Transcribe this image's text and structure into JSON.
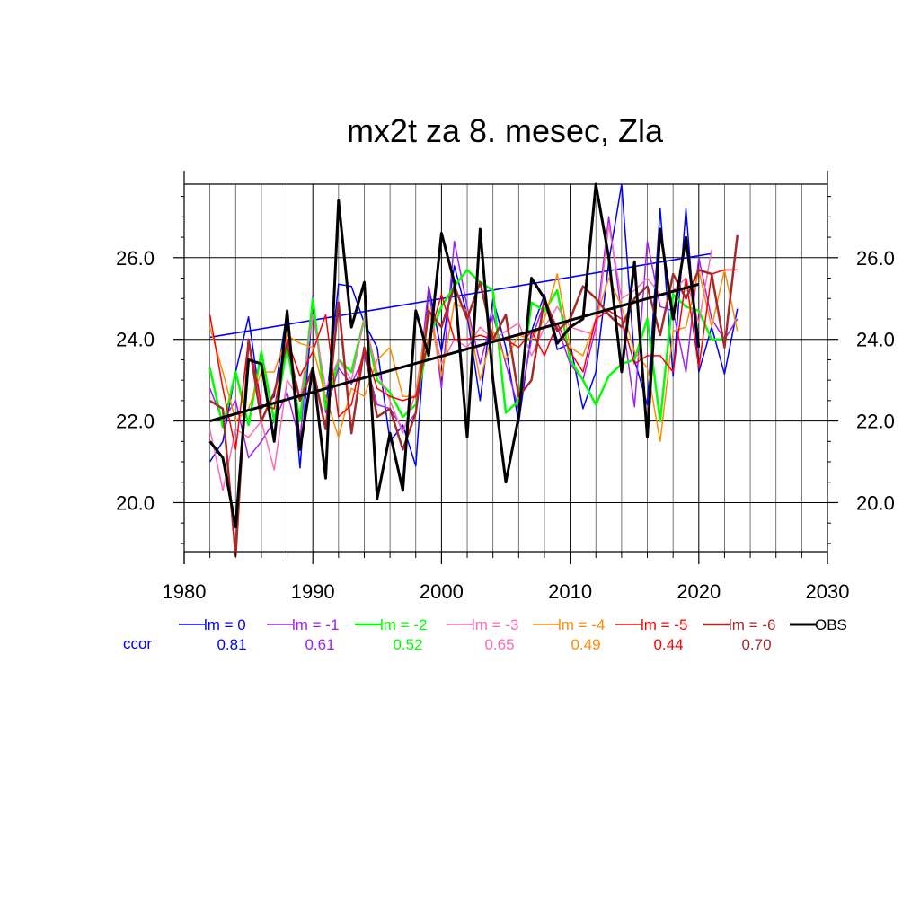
{
  "chart_data": {
    "type": "line",
    "title": "mx2t za 8. mesec, Zla",
    "xlabel": "",
    "ylabel": "",
    "xlim": [
      1980,
      2030
    ],
    "ylim": [
      18.8,
      27.8
    ],
    "x_ticks": [
      1980,
      1990,
      2000,
      2010,
      2020,
      2030
    ],
    "x_tick_labels": [
      "1980",
      "1990",
      "2000",
      "2010",
      "2020",
      "2030"
    ],
    "y_ticks": [
      20,
      22,
      24,
      26
    ],
    "y_tick_labels": [
      "20.0",
      "22.0",
      "24.0",
      "26.0"
    ],
    "grid": true,
    "legend_position": "bottom",
    "ccor_label": "ccor",
    "series": [
      {
        "name": "lm = 0",
        "color": "#0000ff",
        "ccor": "0.81",
        "width": 1.5,
        "x_start": 1982,
        "values": [
          21.0,
          21.5,
          23.2,
          24.55,
          22.3,
          22.6,
          24.7,
          20.85,
          24.9,
          22.3,
          25.35,
          25.3,
          24.4,
          23.8,
          21.5,
          21.9,
          20.9,
          25.3,
          23.7,
          25.8,
          24.6,
          22.5,
          25.0,
          23.8,
          21.95,
          24.2,
          25.1,
          23.75,
          23.9,
          22.3,
          23.2,
          25.9,
          27.8,
          23.5,
          22.4,
          27.2,
          23.1,
          27.2,
          23.2,
          24.3,
          23.15,
          24.75
        ],
        "trend": [
          [
            1982,
            24.05
          ],
          [
            2021,
            26.1
          ]
        ]
      },
      {
        "name": "lm = -1",
        "color": "#a020f0",
        "ccor": "0.61",
        "width": 1.5,
        "x_start": 1982,
        "values": [
          22.8,
          22.0,
          22.5,
          21.1,
          21.5,
          22.0,
          22.7,
          21.5,
          25.1,
          22.2,
          23.3,
          22.9,
          23.6,
          22.4,
          22.3,
          21.8,
          22.2,
          25.3,
          22.8,
          26.4,
          24.8,
          23.4,
          24.6,
          23.4,
          22.3,
          24.0,
          24.9,
          24.3,
          23.4,
          23.0,
          24.3,
          27.0,
          24.6,
          22.35,
          26.4,
          24.8,
          24.7,
          23.2,
          26.0,
          24.5,
          24.0,
          24.5
        ],
        "trend": null
      },
      {
        "name": "lm = -2",
        "color": "#00ff00",
        "ccor": "0.52",
        "width": 2.5,
        "x_start": 1982,
        "values": [
          23.3,
          21.85,
          23.2,
          21.9,
          23.7,
          22.0,
          23.8,
          22.0,
          25.0,
          22.3,
          23.5,
          23.2,
          24.5,
          23.0,
          22.7,
          22.1,
          22.4,
          24.0,
          24.8,
          25.3,
          25.7,
          25.4,
          25.2,
          22.2,
          22.5,
          24.9,
          24.7,
          25.2,
          23.5,
          23.0,
          22.4,
          23.1,
          23.4,
          23.5,
          24.5,
          22.0,
          25.1,
          24.8,
          24.7,
          24.0,
          24.0
        ],
        "trend": null
      },
      {
        "name": "lm = -3",
        "color": "#ff69b4",
        "ccor": "0.65",
        "width": 1.5,
        "x_start": 1982,
        "values": [
          21.8,
          20.3,
          21.8,
          21.6,
          22.0,
          20.8,
          23.0,
          22.5,
          24.6,
          22.8,
          23.5,
          23.0,
          24.5,
          23.2,
          22.5,
          21.7,
          22.7,
          24.8,
          23.4,
          24.0,
          23.8,
          24.3,
          24.0,
          24.2,
          24.4,
          23.6,
          24.3,
          24.8,
          24.3,
          24.2,
          24.1,
          26.8,
          25.0,
          25.2,
          25.5,
          25.1,
          25.2,
          25.5,
          24.4,
          26.2
        ],
        "trend": null
      },
      {
        "name": "lm = -4",
        "color": "#ff8c00",
        "ccor": "0.49",
        "width": 1.5,
        "x_start": 1982,
        "values": [
          24.3,
          23.2,
          22.0,
          22.3,
          23.2,
          23.2,
          24.1,
          23.9,
          23.8,
          22.6,
          21.6,
          22.8,
          22.6,
          23.5,
          23.8,
          22.6,
          22.6,
          24.8,
          23.1,
          24.9,
          24.7,
          23.0,
          24.2,
          23.5,
          24.1,
          24.0,
          24.5,
          25.6,
          23.8,
          23.6,
          24.5,
          25.5,
          24.8,
          23.7,
          23.3,
          21.5,
          24.2,
          24.3,
          25.7,
          24.3,
          25.7,
          24.2
        ],
        "trend": null
      },
      {
        "name": "lm = -5",
        "color": "#ff0000",
        "ccor": "0.44",
        "width": 1.5,
        "x_start": 1982,
        "values": [
          24.6,
          22.8,
          21.3,
          24.0,
          22.4,
          22.3,
          24.0,
          23.1,
          23.7,
          24.6,
          22.1,
          22.4,
          23.8,
          22.8,
          22.6,
          22.5,
          22.6,
          24.0,
          25.1,
          24.0,
          24.0,
          24.1,
          24.0,
          24.0,
          23.8,
          24.2,
          23.6,
          24.4,
          23.7,
          23.2,
          24.5,
          24.7,
          24.5,
          23.4,
          23.6,
          23.6,
          23.2,
          25.5,
          23.3,
          25.6,
          25.7,
          25.7
        ],
        "trend": null
      },
      {
        "name": "lm = -6",
        "color": "#a52a2a",
        "ccor": "0.70",
        "width": 2.5,
        "x_start": 1982,
        "values": [
          22.5,
          22.3,
          18.7,
          24.0,
          22.0,
          22.7,
          23.9,
          22.5,
          23.3,
          21.8,
          24.9,
          21.7,
          23.8,
          22.1,
          22.3,
          21.3,
          22.2,
          24.7,
          24.3,
          25.3,
          24.5,
          25.4,
          24.0,
          24.6,
          22.6,
          23.0,
          25.0,
          24.2,
          24.5,
          25.3,
          25.0,
          24.6,
          24.3,
          25.0,
          25.3,
          24.1,
          25.6,
          25.0,
          25.7,
          25.6,
          23.8,
          26.55
        ],
        "trend": null
      },
      {
        "name": "OBS",
        "color": "#000000",
        "ccor": "",
        "width": 3,
        "x_start": 1982,
        "values": [
          21.5,
          21.1,
          19.4,
          23.5,
          23.4,
          21.5,
          24.7,
          21.3,
          23.3,
          20.6,
          27.4,
          24.3,
          25.4,
          20.1,
          21.7,
          20.3,
          24.7,
          23.6,
          26.6,
          25.4,
          21.6,
          26.7,
          23.0,
          20.5,
          22.1,
          25.5,
          25.0,
          23.9,
          24.3,
          24.5,
          27.8,
          26.0,
          23.2,
          25.9,
          21.6,
          26.7,
          24.5,
          26.5,
          23.8
        ],
        "trend": [
          [
            1982,
            22.0
          ],
          [
            2020,
            25.35
          ]
        ]
      }
    ]
  }
}
